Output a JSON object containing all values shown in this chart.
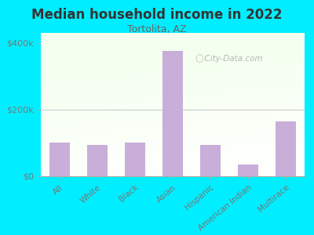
{
  "title": "Median household income in 2022",
  "subtitle": "Tortolita, AZ",
  "categories": [
    "All",
    "White",
    "Black",
    "Asian",
    "Hispanic",
    "American Indian",
    "Multirace"
  ],
  "values": [
    100000,
    95000,
    100000,
    375000,
    95000,
    35000,
    165000
  ],
  "bar_color": "#c8aed8",
  "background_outer": "#00eeff",
  "title_color": "#333333",
  "subtitle_color": "#666666",
  "tick_color": "#777777",
  "watermark": "City-Data.com",
  "ylim": [
    0,
    430000
  ],
  "yticks": [
    0,
    200000,
    400000
  ],
  "ytick_labels": [
    "$0",
    "$200k",
    "$400k"
  ]
}
